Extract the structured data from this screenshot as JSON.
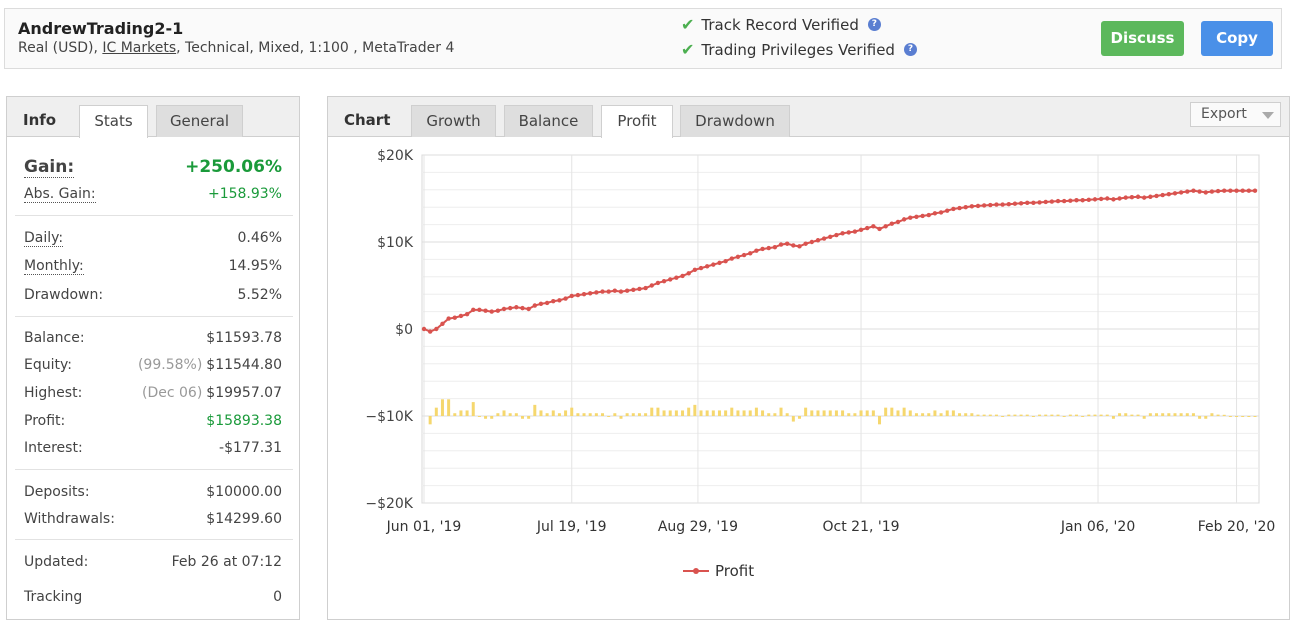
{
  "account": {
    "name": "AndrewTrading2-1",
    "details_prefix": "Real (USD), ",
    "broker": "IC Markets",
    "details_suffix": ", Technical, Mixed, 1:100 , MetaTrader 4"
  },
  "verification": {
    "track_record": "Track Record Verified",
    "trading_privileges": "Trading Privileges Verified"
  },
  "buttons": {
    "discuss": "Discuss",
    "copy": "Copy"
  },
  "left_tabs": {
    "heading": "Info",
    "stats": "Stats",
    "general": "General",
    "active": "Stats"
  },
  "stats": {
    "gain": {
      "label": "Gain:",
      "value": "+250.06%"
    },
    "abs_gain": {
      "label": "Abs. Gain:",
      "value": "+158.93%"
    },
    "daily": {
      "label": "Daily:",
      "value": "0.46%"
    },
    "monthly": {
      "label": "Monthly:",
      "value": "14.95%"
    },
    "drawdown": {
      "label": "Drawdown:",
      "value": "5.52%"
    },
    "balance": {
      "label": "Balance:",
      "value": "$11593.78"
    },
    "equity": {
      "label": "Equity:",
      "note": "(99.58%)",
      "value": "$11544.80"
    },
    "highest": {
      "label": "Highest:",
      "note": "(Dec 06)",
      "value": "$19957.07"
    },
    "profit": {
      "label": "Profit:",
      "value": "$15893.38"
    },
    "interest": {
      "label": "Interest:",
      "value": "-$177.31"
    },
    "deposits": {
      "label": "Deposits:",
      "value": "$10000.00"
    },
    "withdrawals": {
      "label": "Withdrawals:",
      "value": "$14299.60"
    },
    "updated": {
      "label": "Updated:",
      "value": "Feb 26 at 07:12"
    },
    "tracking": {
      "label": "Tracking",
      "value": "0"
    }
  },
  "chart_tabs": {
    "heading": "Chart",
    "growth": "Growth",
    "balance": "Balance",
    "profit": "Profit",
    "drawdown": "Drawdown",
    "active": "Profit"
  },
  "export_label": "Export",
  "colors": {
    "profit_line": "#d9534f",
    "daily_bars": "#f5d76e",
    "discuss": "#5cb85c",
    "copy": "#4a90e8",
    "positive": "#1a9a3a"
  },
  "chart_data": {
    "type": "line",
    "title": "",
    "y_tick_labels": [
      "$20K",
      "$10K",
      "$0",
      "−$10K",
      "−$20K"
    ],
    "y_ticks": [
      20000,
      10000,
      0,
      -10000,
      -20000
    ],
    "ylim": [
      -20000,
      20000
    ],
    "x_tick_labels": [
      "Jun 01, '19",
      "Jul 19, '19",
      "Aug 29, '19",
      "Oct 21, '19",
      "Jan 06, '20",
      "Feb 20, '20"
    ],
    "x_tick_days": [
      0,
      48,
      89,
      142,
      219,
      264
    ],
    "xlim_days": [
      0,
      270
    ],
    "grid": true,
    "legend": "bottom-center",
    "series": [
      {
        "name": "Profit",
        "x_days": [
          0,
          2,
          4,
          6,
          8,
          10,
          12,
          14,
          16,
          18,
          20,
          22,
          24,
          26,
          28,
          30,
          32,
          34,
          36,
          38,
          40,
          42,
          44,
          46,
          48,
          50,
          52,
          54,
          56,
          58,
          60,
          62,
          64,
          66,
          68,
          70,
          72,
          74,
          76,
          78,
          80,
          82,
          84,
          86,
          88,
          90,
          92,
          94,
          96,
          98,
          100,
          102,
          104,
          106,
          108,
          110,
          112,
          114,
          116,
          118,
          120,
          122,
          124,
          126,
          128,
          130,
          132,
          134,
          136,
          138,
          140,
          142,
          144,
          146,
          148,
          150,
          152,
          154,
          156,
          158,
          160,
          162,
          164,
          166,
          168,
          170,
          172,
          174,
          176,
          178,
          180,
          182,
          184,
          186,
          188,
          190,
          192,
          194,
          196,
          198,
          200,
          202,
          204,
          206,
          208,
          210,
          212,
          214,
          216,
          218,
          220,
          222,
          224,
          226,
          228,
          230,
          232,
          234,
          236,
          238,
          240,
          242,
          244,
          246,
          248,
          250,
          252,
          254,
          256,
          258,
          260,
          262,
          264,
          266,
          268,
          270
        ],
        "values": [
          0,
          -300,
          0,
          600,
          1200,
          1300,
          1500,
          1700,
          2200,
          2200,
          2100,
          2000,
          2100,
          2300,
          2400,
          2500,
          2400,
          2300,
          2700,
          2900,
          3000,
          3200,
          3300,
          3500,
          3800,
          3900,
          4000,
          4100,
          4200,
          4300,
          4300,
          4400,
          4300,
          4400,
          4500,
          4600,
          4700,
          5000,
          5300,
          5500,
          5700,
          5900,
          6100,
          6400,
          6800,
          7000,
          7200,
          7400,
          7600,
          7800,
          8100,
          8300,
          8500,
          8700,
          9000,
          9200,
          9300,
          9400,
          9700,
          9800,
          9600,
          9500,
          9800,
          10000,
          10200,
          10400,
          10600,
          10800,
          11000,
          11100,
          11200,
          11400,
          11600,
          11800,
          11500,
          11800,
          12100,
          12300,
          12600,
          12800,
          12900,
          13000,
          13100,
          13300,
          13400,
          13600,
          13800,
          13900,
          14000,
          14100,
          14150,
          14200,
          14250,
          14300,
          14300,
          14350,
          14400,
          14450,
          14500,
          14500,
          14550,
          14600,
          14650,
          14700,
          14700,
          14750,
          14800,
          14800,
          14850,
          14900,
          14950,
          15000,
          14900,
          15000,
          15100,
          15150,
          15200,
          15100,
          15200,
          15300,
          15400,
          15500,
          15600,
          15700,
          15800,
          15900,
          15800,
          15700,
          15800,
          15850,
          15893,
          15893,
          15893,
          15893,
          15893,
          15893
        ]
      }
    ]
  }
}
